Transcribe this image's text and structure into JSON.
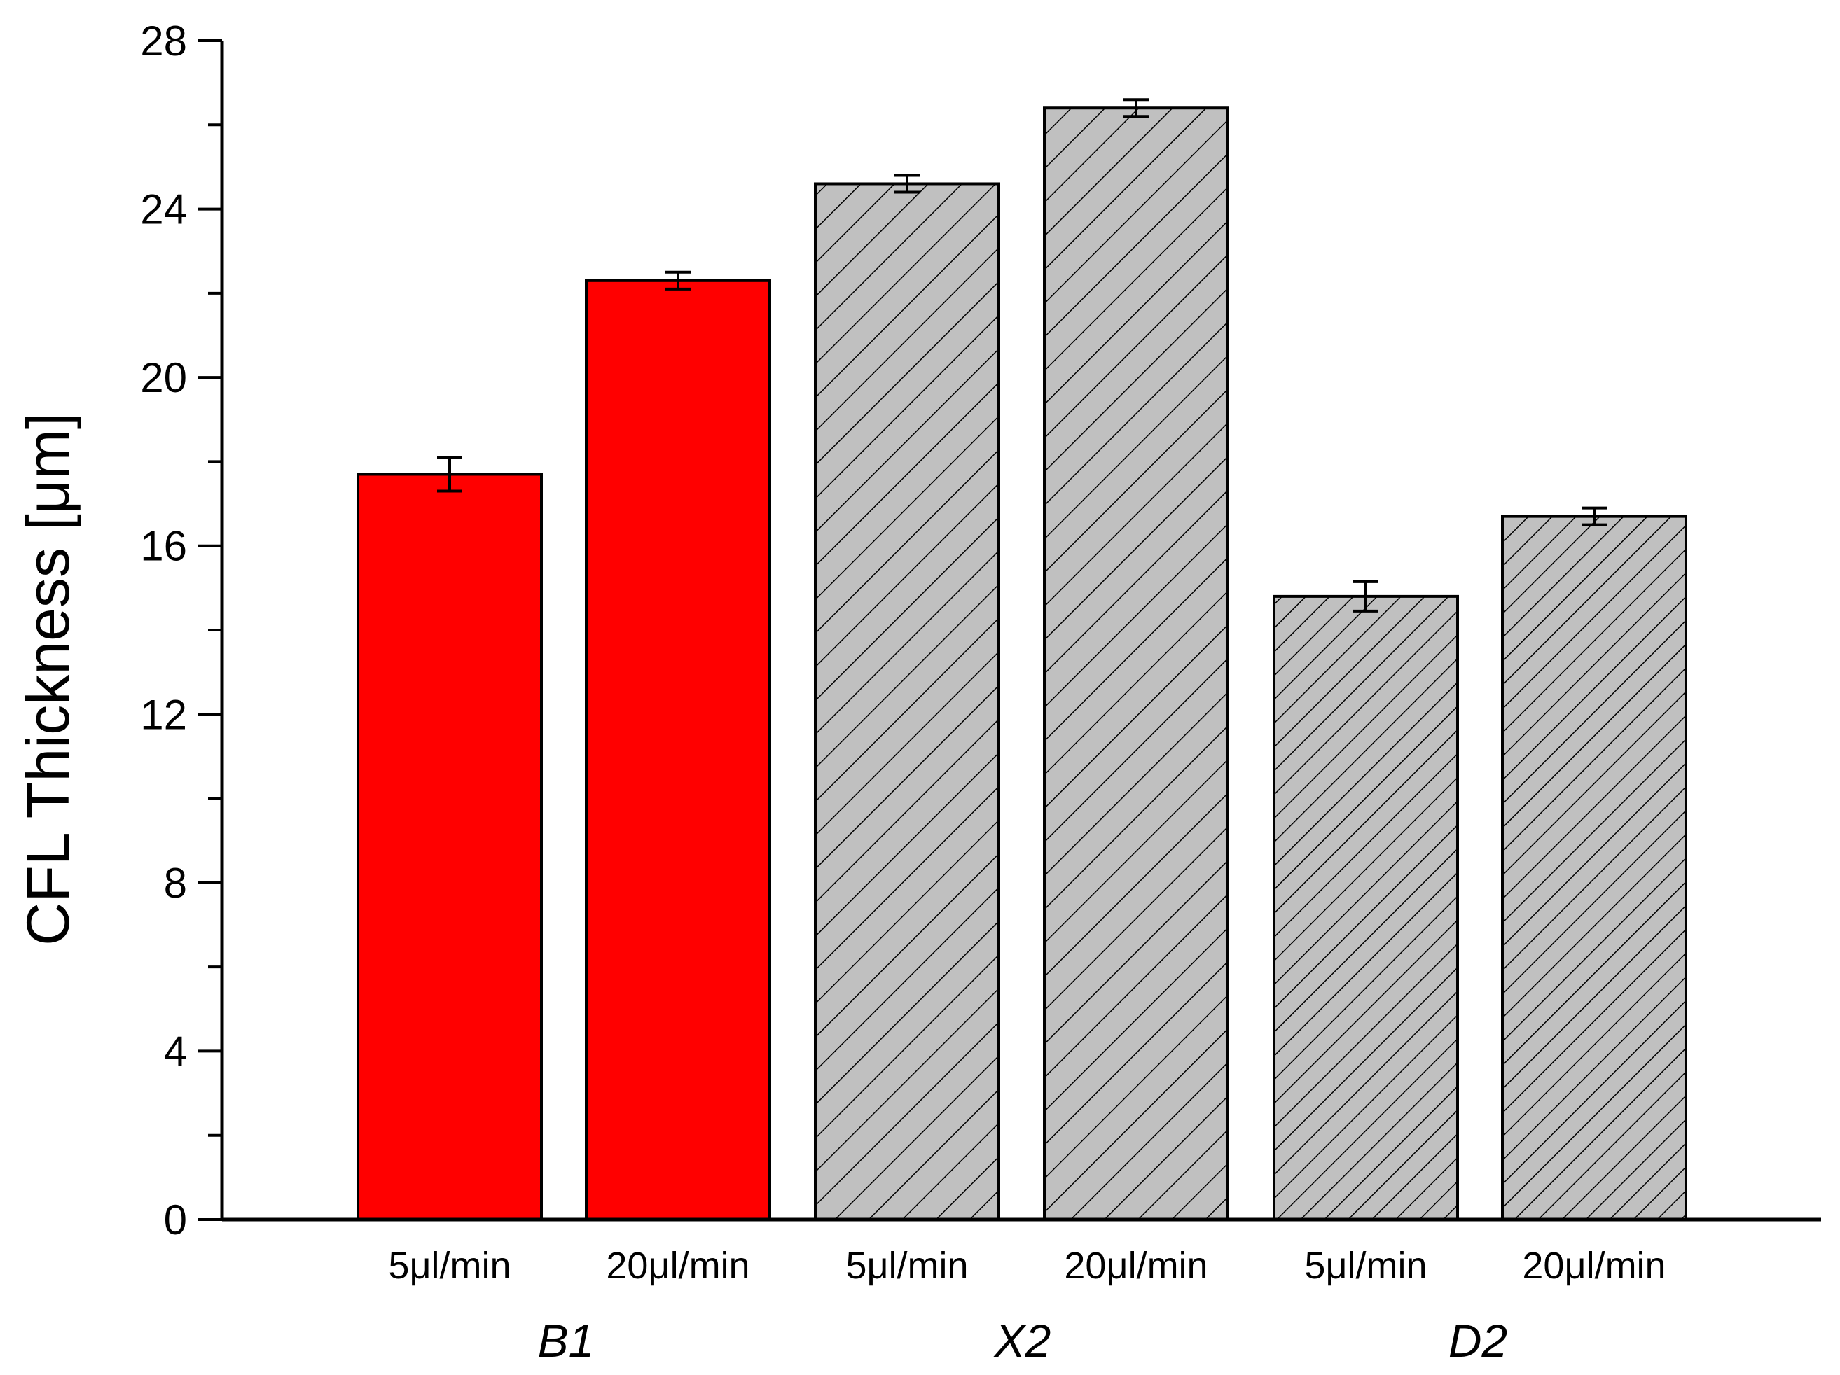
{
  "chart_data": {
    "type": "bar",
    "title": "",
    "xlabel": "",
    "ylabel": "CFL Thickness [μm]",
    "ylim": [
      0,
      28
    ],
    "y_ticks": [
      "0",
      "4",
      "8",
      "12",
      "16",
      "20",
      "24",
      "28"
    ],
    "grid": false,
    "categories": [
      "5μl/min",
      "20μl/min",
      "5μl/min",
      "20μl/min",
      "5μl/min",
      "20μl/min"
    ],
    "groups": [
      "B1",
      "X2",
      "D2"
    ],
    "values": [
      17.7,
      22.3,
      24.6,
      26.4,
      14.8,
      16.7
    ],
    "errors": [
      0.4,
      0.2,
      0.2,
      0.2,
      0.35,
      0.2
    ],
    "colors": {
      "solid": "#ff0000",
      "hatched": "#c0c0c0",
      "outline": "#000000"
    },
    "fill_styles": [
      "solid",
      "solid",
      "hatched",
      "hatched",
      "hatched-dense",
      "hatched-dense"
    ]
  }
}
